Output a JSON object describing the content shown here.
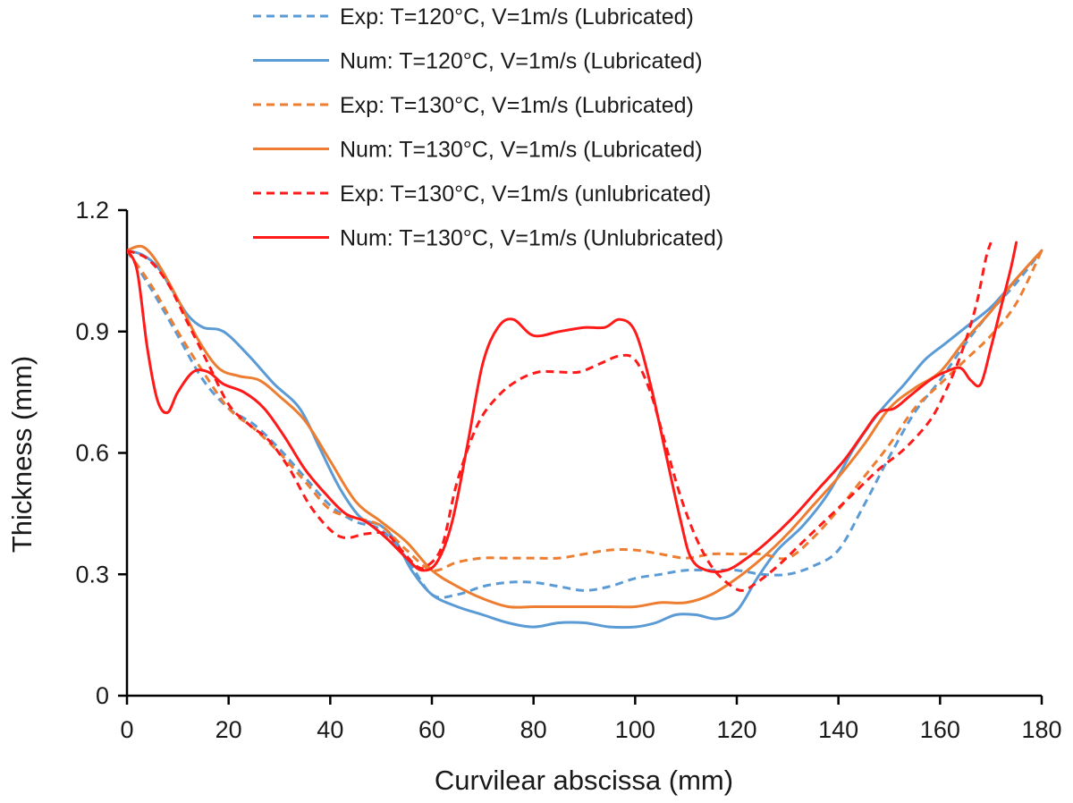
{
  "chart_data": {
    "type": "line",
    "title": "",
    "xlabel": "Curvilear abscissa (mm)",
    "ylabel": "Thickness (mm)",
    "xlim": [
      0,
      180
    ],
    "ylim": [
      0,
      1.2
    ],
    "xticks": [
      0,
      20,
      40,
      60,
      80,
      100,
      120,
      140,
      160,
      180
    ],
    "yticks": [
      0,
      0.3,
      0.6,
      0.9,
      1.2
    ],
    "ytick_labels": [
      "0",
      "0.3",
      "0.6",
      "0.9",
      "1.2"
    ],
    "legend_position": "top",
    "series": [
      {
        "name": "Exp: T=120°C, V=1m/s (Lubricated)",
        "color": "#5b9bd5",
        "dashed": true,
        "points": [
          [
            0,
            1.1
          ],
          [
            5,
            1.0
          ],
          [
            10,
            0.89
          ],
          [
            15,
            0.78
          ],
          [
            20,
            0.71
          ],
          [
            25,
            0.67
          ],
          [
            30,
            0.61
          ],
          [
            35,
            0.54
          ],
          [
            40,
            0.47
          ],
          [
            45,
            0.43
          ],
          [
            50,
            0.41
          ],
          [
            55,
            0.34
          ],
          [
            60,
            0.25
          ],
          [
            65,
            0.25
          ],
          [
            70,
            0.27
          ],
          [
            75,
            0.28
          ],
          [
            80,
            0.28
          ],
          [
            85,
            0.27
          ],
          [
            90,
            0.26
          ],
          [
            95,
            0.27
          ],
          [
            100,
            0.29
          ],
          [
            105,
            0.3
          ],
          [
            110,
            0.31
          ],
          [
            115,
            0.31
          ],
          [
            120,
            0.31
          ],
          [
            125,
            0.3
          ],
          [
            130,
            0.3
          ],
          [
            135,
            0.32
          ],
          [
            140,
            0.36
          ],
          [
            145,
            0.47
          ],
          [
            150,
            0.59
          ],
          [
            155,
            0.7
          ],
          [
            160,
            0.78
          ],
          [
            165,
            0.87
          ],
          [
            170,
            0.95
          ],
          [
            175,
            1.02
          ],
          [
            180,
            1.1
          ]
        ]
      },
      {
        "name": "Num: T=120°C, V=1m/s (Lubricated)",
        "color": "#5b9bd5",
        "dashed": false,
        "points": [
          [
            0,
            1.1
          ],
          [
            3,
            1.09
          ],
          [
            6,
            1.06
          ],
          [
            9,
            1.0
          ],
          [
            12,
            0.94
          ],
          [
            15,
            0.91
          ],
          [
            19,
            0.9
          ],
          [
            24,
            0.84
          ],
          [
            29,
            0.77
          ],
          [
            34,
            0.71
          ],
          [
            38,
            0.61
          ],
          [
            42,
            0.51
          ],
          [
            46,
            0.44
          ],
          [
            50,
            0.42
          ],
          [
            53,
            0.38
          ],
          [
            56,
            0.31
          ],
          [
            60,
            0.25
          ],
          [
            65,
            0.22
          ],
          [
            70,
            0.2
          ],
          [
            75,
            0.18
          ],
          [
            80,
            0.17
          ],
          [
            85,
            0.18
          ],
          [
            90,
            0.18
          ],
          [
            95,
            0.17
          ],
          [
            100,
            0.17
          ],
          [
            104,
            0.18
          ],
          [
            108,
            0.2
          ],
          [
            112,
            0.2
          ],
          [
            116,
            0.19
          ],
          [
            120,
            0.21
          ],
          [
            124,
            0.29
          ],
          [
            128,
            0.36
          ],
          [
            133,
            0.42
          ],
          [
            138,
            0.5
          ],
          [
            143,
            0.61
          ],
          [
            148,
            0.7
          ],
          [
            153,
            0.77
          ],
          [
            157,
            0.83
          ],
          [
            161,
            0.87
          ],
          [
            165,
            0.91
          ],
          [
            170,
            0.96
          ],
          [
            175,
            1.03
          ],
          [
            180,
            1.1
          ]
        ]
      },
      {
        "name": "Exp: T=130°C, V=1m/s (Lubricated)",
        "color": "#ed7d31",
        "dashed": true,
        "points": [
          [
            0,
            1.1
          ],
          [
            5,
            1.01
          ],
          [
            10,
            0.9
          ],
          [
            15,
            0.8
          ],
          [
            20,
            0.71
          ],
          [
            25,
            0.66
          ],
          [
            30,
            0.6
          ],
          [
            35,
            0.53
          ],
          [
            40,
            0.46
          ],
          [
            45,
            0.44
          ],
          [
            50,
            0.42
          ],
          [
            55,
            0.36
          ],
          [
            60,
            0.31
          ],
          [
            65,
            0.33
          ],
          [
            70,
            0.34
          ],
          [
            75,
            0.34
          ],
          [
            80,
            0.34
          ],
          [
            85,
            0.34
          ],
          [
            90,
            0.35
          ],
          [
            95,
            0.36
          ],
          [
            100,
            0.36
          ],
          [
            105,
            0.35
          ],
          [
            110,
            0.34
          ],
          [
            115,
            0.35
          ],
          [
            120,
            0.35
          ],
          [
            125,
            0.35
          ],
          [
            130,
            0.34
          ],
          [
            135,
            0.39
          ],
          [
            140,
            0.46
          ],
          [
            145,
            0.54
          ],
          [
            150,
            0.62
          ],
          [
            155,
            0.71
          ],
          [
            160,
            0.77
          ],
          [
            165,
            0.83
          ],
          [
            170,
            0.89
          ],
          [
            175,
            0.97
          ],
          [
            180,
            1.1
          ]
        ]
      },
      {
        "name": "Num: T=130°C, V=1m/s (Lubricated)",
        "color": "#ed7d31",
        "dashed": false,
        "points": [
          [
            0,
            1.1
          ],
          [
            3,
            1.11
          ],
          [
            6,
            1.07
          ],
          [
            10,
            0.98
          ],
          [
            14,
            0.88
          ],
          [
            18,
            0.81
          ],
          [
            22,
            0.79
          ],
          [
            26,
            0.78
          ],
          [
            30,
            0.74
          ],
          [
            35,
            0.68
          ],
          [
            40,
            0.58
          ],
          [
            45,
            0.48
          ],
          [
            50,
            0.43
          ],
          [
            55,
            0.38
          ],
          [
            60,
            0.31
          ],
          [
            65,
            0.27
          ],
          [
            70,
            0.24
          ],
          [
            75,
            0.22
          ],
          [
            80,
            0.22
          ],
          [
            85,
            0.22
          ],
          [
            90,
            0.22
          ],
          [
            95,
            0.22
          ],
          [
            100,
            0.22
          ],
          [
            105,
            0.23
          ],
          [
            110,
            0.23
          ],
          [
            115,
            0.25
          ],
          [
            120,
            0.29
          ],
          [
            125,
            0.34
          ],
          [
            130,
            0.4
          ],
          [
            135,
            0.47
          ],
          [
            140,
            0.54
          ],
          [
            145,
            0.62
          ],
          [
            150,
            0.71
          ],
          [
            155,
            0.76
          ],
          [
            160,
            0.8
          ],
          [
            165,
            0.88
          ],
          [
            170,
            0.95
          ],
          [
            175,
            1.03
          ],
          [
            180,
            1.1
          ]
        ]
      },
      {
        "name": "Exp: T=130°C, V=1m/s (unlubricated)",
        "color": "#ff1a1a",
        "dashed": true,
        "points": [
          [
            0,
            1.1
          ],
          [
            4,
            1.08
          ],
          [
            8,
            1.02
          ],
          [
            12,
            0.92
          ],
          [
            16,
            0.82
          ],
          [
            20,
            0.72
          ],
          [
            24,
            0.67
          ],
          [
            28,
            0.63
          ],
          [
            32,
            0.56
          ],
          [
            36,
            0.47
          ],
          [
            40,
            0.41
          ],
          [
            43,
            0.39
          ],
          [
            47,
            0.4
          ],
          [
            51,
            0.4
          ],
          [
            54,
            0.36
          ],
          [
            57,
            0.32
          ],
          [
            59,
            0.32
          ],
          [
            62,
            0.37
          ],
          [
            65,
            0.53
          ],
          [
            69,
            0.67
          ],
          [
            73,
            0.74
          ],
          [
            77,
            0.78
          ],
          [
            81,
            0.8
          ],
          [
            85,
            0.8
          ],
          [
            89,
            0.8
          ],
          [
            93,
            0.82
          ],
          [
            97,
            0.84
          ],
          [
            100,
            0.83
          ],
          [
            103,
            0.75
          ],
          [
            106,
            0.62
          ],
          [
            109,
            0.49
          ],
          [
            112,
            0.39
          ],
          [
            115,
            0.32
          ],
          [
            118,
            0.28
          ],
          [
            121,
            0.26
          ],
          [
            124,
            0.28
          ],
          [
            128,
            0.32
          ],
          [
            133,
            0.38
          ],
          [
            138,
            0.44
          ],
          [
            143,
            0.5
          ],
          [
            148,
            0.56
          ],
          [
            153,
            0.61
          ],
          [
            158,
            0.68
          ],
          [
            161,
            0.75
          ],
          [
            164,
            0.84
          ],
          [
            167,
            0.96
          ],
          [
            169,
            1.08
          ],
          [
            170,
            1.12
          ]
        ]
      },
      {
        "name": "Num: T=130°C, V=1m/s (Unlubricated)",
        "color": "#ff1a1a",
        "dashed": false,
        "points": [
          [
            0,
            1.1
          ],
          [
            2,
            1.05
          ],
          [
            4,
            0.86
          ],
          [
            6,
            0.73
          ],
          [
            8,
            0.7
          ],
          [
            10,
            0.75
          ],
          [
            13,
            0.8
          ],
          [
            16,
            0.8
          ],
          [
            19,
            0.77
          ],
          [
            23,
            0.75
          ],
          [
            27,
            0.71
          ],
          [
            31,
            0.64
          ],
          [
            35,
            0.56
          ],
          [
            39,
            0.5
          ],
          [
            43,
            0.45
          ],
          [
            47,
            0.43
          ],
          [
            51,
            0.39
          ],
          [
            55,
            0.34
          ],
          [
            58,
            0.31
          ],
          [
            61,
            0.33
          ],
          [
            64,
            0.43
          ],
          [
            67,
            0.62
          ],
          [
            70,
            0.82
          ],
          [
            73,
            0.91
          ],
          [
            76,
            0.93
          ],
          [
            80,
            0.89
          ],
          [
            85,
            0.9
          ],
          [
            90,
            0.91
          ],
          [
            94,
            0.91
          ],
          [
            97,
            0.93
          ],
          [
            100,
            0.9
          ],
          [
            103,
            0.77
          ],
          [
            106,
            0.6
          ],
          [
            109,
            0.43
          ],
          [
            111,
            0.34
          ],
          [
            114,
            0.31
          ],
          [
            118,
            0.31
          ],
          [
            122,
            0.34
          ],
          [
            126,
            0.38
          ],
          [
            131,
            0.44
          ],
          [
            136,
            0.51
          ],
          [
            141,
            0.58
          ],
          [
            145,
            0.65
          ],
          [
            148,
            0.7
          ],
          [
            151,
            0.71
          ],
          [
            154,
            0.74
          ],
          [
            158,
            0.78
          ],
          [
            161,
            0.8
          ],
          [
            164,
            0.81
          ],
          [
            166,
            0.78
          ],
          [
            168,
            0.77
          ],
          [
            170,
            0.86
          ],
          [
            172,
            0.96
          ],
          [
            174,
            1.06
          ],
          [
            175,
            1.12
          ]
        ]
      }
    ]
  }
}
